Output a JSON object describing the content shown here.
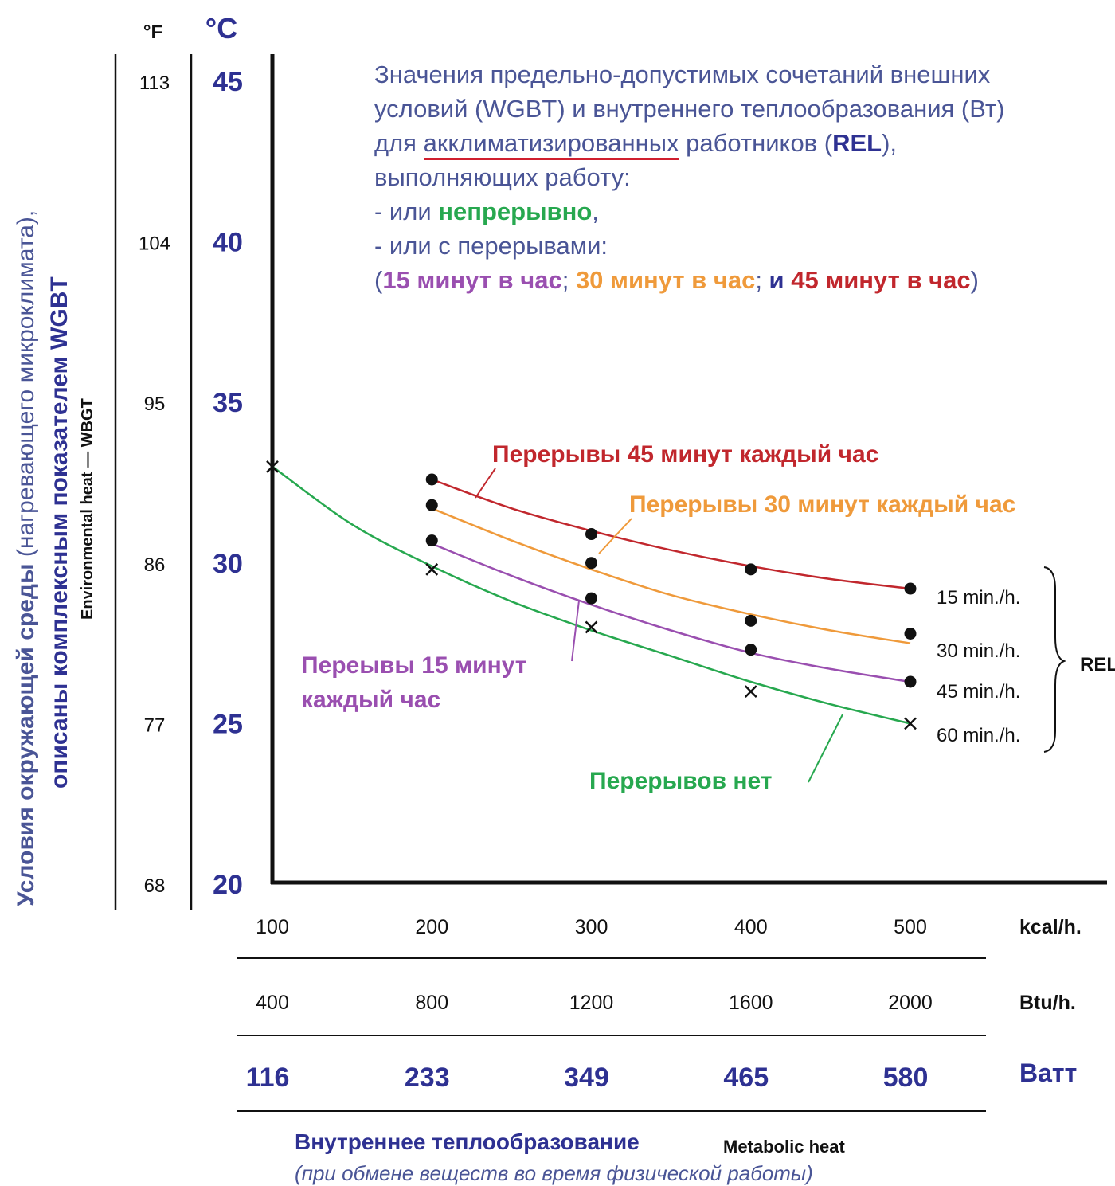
{
  "title": {
    "line1": "Значения предельно-допустимых сочетаний внешних",
    "line2": "условий (WGBT) и внутреннего теплообразования (Вт)",
    "line3_a": "для ",
    "line3_u": "акклиматизированных",
    "line3_b": " работников (",
    "line3_rel": "REL",
    "line3_c": "),",
    "line4": "выполняющих работу:",
    "line5_a": "- или ",
    "line5_g": "непрерывно",
    "line5_b": ",",
    "line6": "- или с перерывами:",
    "line7_open": "(",
    "line7_15": "15 минут в час",
    "line7_sep1": "; ",
    "line7_30": "30 минут в час",
    "line7_sep2": "; ",
    "line7_and": "и ",
    "line7_45": "45 минут в час",
    "line7_close": ")"
  },
  "colors": {
    "text_blue": "#4a5596",
    "dark_blue": "#2e3192",
    "green": "#27a84f",
    "orange": "#ef9a3b",
    "red": "#c1272d",
    "purple": "#9a4fb0",
    "underline": "#d01f2e",
    "axis": "#111111"
  },
  "chart_data": {
    "type": "line",
    "title": "Значения предельно-допустимых сочетаний внешних условий (WGBT) и внутреннего теплообразования (Вт) для акклиматизированных работников (REL), выполняющих работу: - или непрерывно, - или с перерывами: (15 минут в час; 30 минут в час; и 45 минут в час)",
    "ylabel_main_part1": "Условия окружающей среды",
    "ylabel_main_part2": " (нагревающего микроклимата),",
    "ylabel_line2": "описаны комплексным показателем WGBT",
    "ylabel_en": "Environmental heat — WBGT",
    "y_unit_f": "°F",
    "y_unit_c": "°C",
    "ylim": [
      20,
      46
    ],
    "y_ticks_c": [
      "20",
      "25",
      "30",
      "35",
      "40",
      "45"
    ],
    "y_ticks_f": [
      "68",
      "77",
      "86",
      "95",
      "104",
      "113"
    ],
    "xlim": [
      100,
      500
    ],
    "x_ticks_kcal": [
      "100",
      "200",
      "300",
      "400",
      "500"
    ],
    "x_unit_kcal": "kcal/h.",
    "x_ticks_btu": [
      "400",
      "800",
      "1200",
      "1600",
      "2000"
    ],
    "x_unit_btu": "Btu/h.",
    "x_ticks_watt": [
      "116",
      "233",
      "349",
      "465",
      "580"
    ],
    "x_unit_watt": "Ватт",
    "xlabel": "Внутреннее теплообразование",
    "xlabel_en": "Metabolic heat",
    "xlabel_sub": "(при обмене веществ во время физической работы)",
    "series": [
      {
        "name": "Перерывы 45 минут каждый час",
        "color": "#c1272d",
        "marker": "dot",
        "points_x": [
          200,
          300,
          400,
          500
        ],
        "points_y": [
          32.6,
          30.9,
          29.8,
          29.2
        ],
        "curve_x": [
          200,
          250,
          300,
          350,
          400,
          450,
          500
        ],
        "curve_y": [
          32.6,
          31.7,
          31.0,
          30.4,
          29.9,
          29.5,
          29.2
        ]
      },
      {
        "name": "Перерывы 30 минут каждый час",
        "color": "#ef9a3b",
        "marker": "dot",
        "points_x": [
          200,
          300,
          400,
          500
        ],
        "points_y": [
          31.8,
          30.0,
          28.2,
          27.8
        ],
        "curve_x": [
          200,
          250,
          300,
          350,
          400,
          450,
          500
        ],
        "curve_y": [
          31.7,
          30.7,
          29.8,
          29.0,
          28.4,
          27.9,
          27.5
        ]
      },
      {
        "name": "Переывы 15 минут каждый час",
        "color": "#9a4fb0",
        "marker": "dot",
        "points_x": [
          200,
          300,
          400,
          500
        ],
        "points_y": [
          30.7,
          28.9,
          27.3,
          26.3
        ],
        "curve_x": [
          200,
          250,
          300,
          350,
          400,
          450,
          500
        ],
        "curve_y": [
          30.6,
          29.6,
          28.7,
          27.9,
          27.2,
          26.7,
          26.3
        ]
      },
      {
        "name": "Перерывов нет",
        "color": "#27a84f",
        "marker": "x",
        "points_x": [
          100,
          200,
          300,
          400,
          500
        ],
        "points_y": [
          33.0,
          29.8,
          28.0,
          26.0,
          25.0
        ],
        "curve_x": [
          100,
          150,
          200,
          250,
          300,
          350,
          400,
          450,
          500
        ],
        "curve_y": [
          33.0,
          31.2,
          29.9,
          28.8,
          27.9,
          27.1,
          26.3,
          25.6,
          25.0
        ]
      }
    ],
    "rel_labels": [
      "15 min./h.",
      "30 min./h.",
      "45 min./h.",
      "60 min./h."
    ],
    "rel_group": "REL"
  }
}
